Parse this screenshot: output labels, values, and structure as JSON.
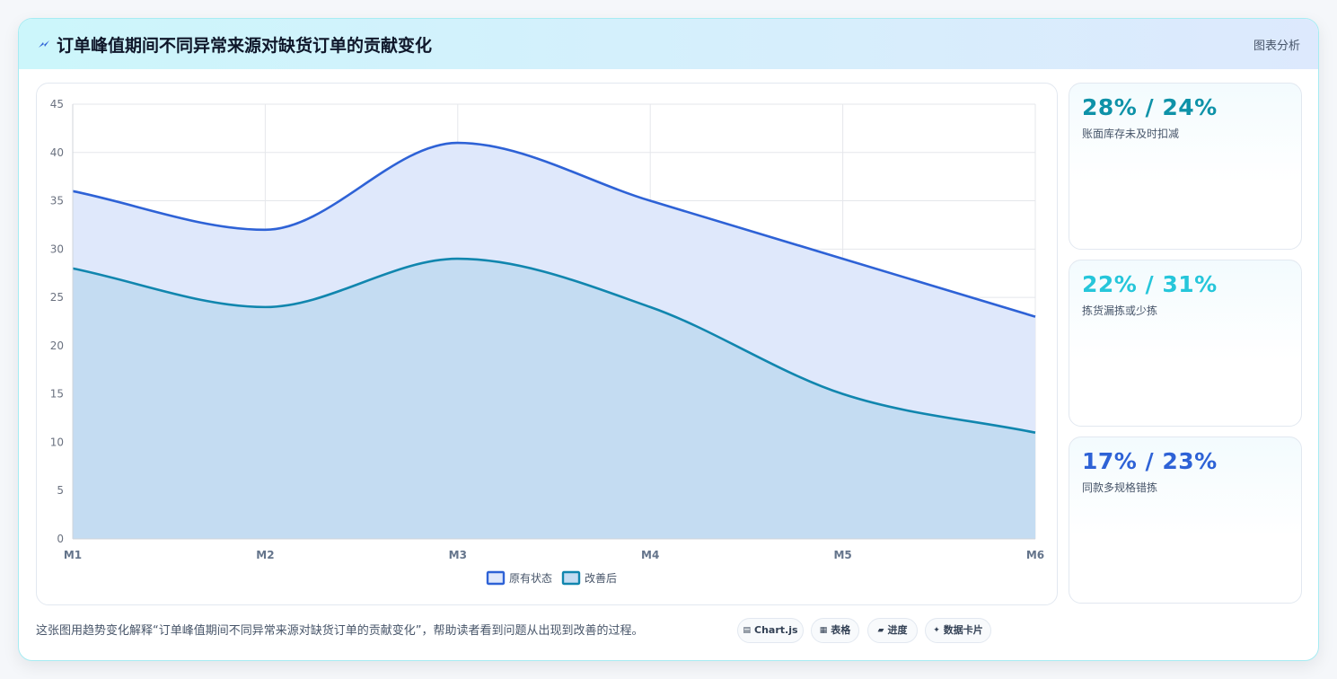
{
  "header": {
    "icon": "lightning-icon",
    "title": "订单峰值期间不同异常来源对缺货订单的贡献变化",
    "tag": "图表分析"
  },
  "chart_data": {
    "type": "area",
    "x": [
      "M1",
      "M2",
      "M3",
      "M4",
      "M5",
      "M6"
    ],
    "series": [
      {
        "name": "原有状态",
        "values": [
          36,
          32,
          41,
          35,
          29,
          23
        ],
        "color": "#2e62d6",
        "fill": "#dfe8fb"
      },
      {
        "name": "改善后",
        "values": [
          28,
          24,
          29,
          24,
          15,
          11
        ],
        "color": "#1186ae",
        "fill": "#c4dcf2"
      }
    ],
    "ylim": [
      0,
      45
    ],
    "yticks": [
      0,
      5,
      10,
      15,
      20,
      25,
      30,
      35,
      40,
      45
    ],
    "grid": true,
    "legend": "bottom"
  },
  "kpis": [
    {
      "value": "28% / 24%",
      "label": "账面库存未及时扣减",
      "color": "#0e92a8"
    },
    {
      "value": "22% / 31%",
      "label": "拣货漏拣或少拣",
      "color": "#26c6da"
    },
    {
      "value": "17% / 23%",
      "label": "同款多规格错拣",
      "color": "#2e62d6"
    }
  ],
  "footer": {
    "text": "这张图用趋势变化解释“订单峰值期间不同异常来源对缺货订单的贡献变化”，帮助读者看到问题从出现到改善的过程。",
    "chips": [
      {
        "icon": "▤",
        "label": "Chart.js"
      },
      {
        "icon": "▦",
        "label": "表格"
      },
      {
        "icon": "▰",
        "label": "进度"
      },
      {
        "icon": "✦",
        "label": "数据卡片"
      }
    ]
  }
}
